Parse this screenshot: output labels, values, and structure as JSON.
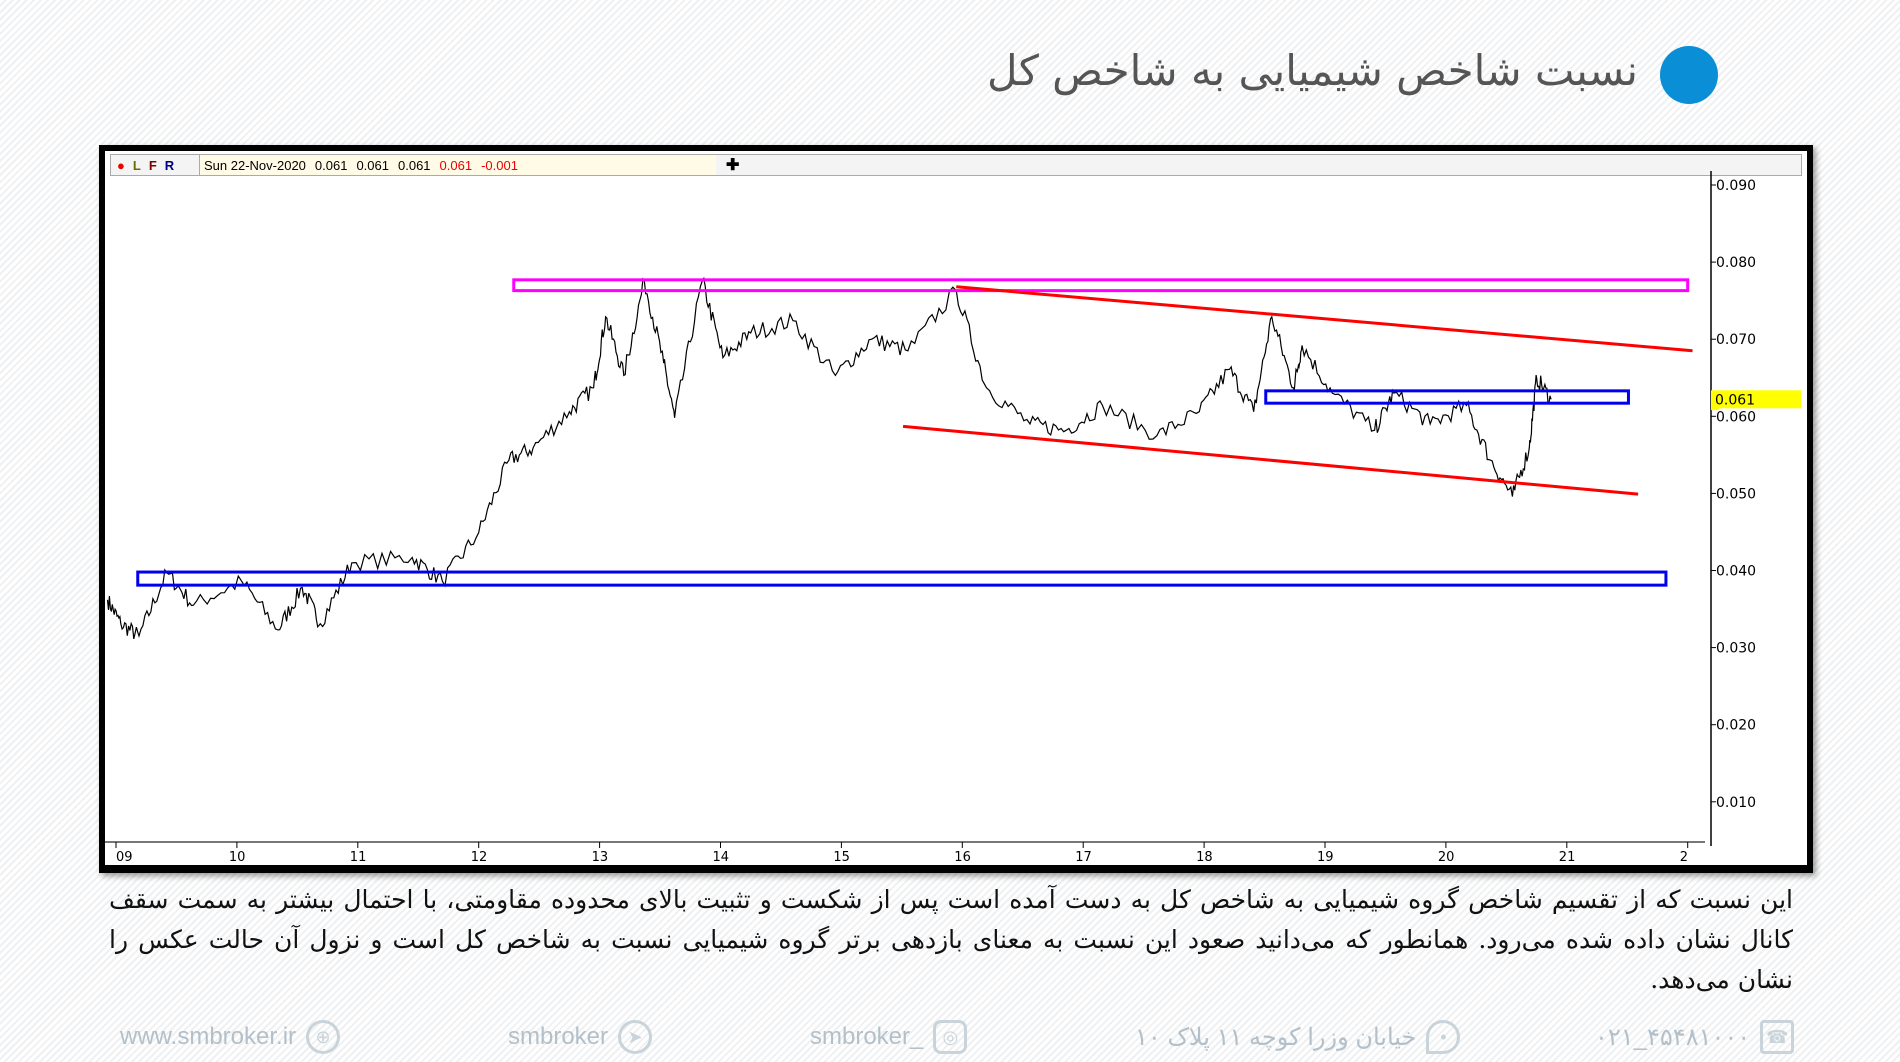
{
  "header": {
    "title": "نسبت شاخص شیمیایی به شاخص کل",
    "bullet_color": "#0a8fd6"
  },
  "infobar": {
    "flags": [
      "L",
      "F",
      "R"
    ],
    "date": "Sun 22-Nov-2020",
    "open": "0.061",
    "high": "0.061",
    "low": "0.061",
    "close": "0.061",
    "change": "-0.001"
  },
  "chart_data": {
    "type": "line",
    "x_tick_labels": [
      "09",
      "10",
      "11",
      "12",
      "13",
      "14",
      "15",
      "16",
      "17",
      "18",
      "19",
      "20",
      "21",
      "2"
    ],
    "xlim": [
      8.93,
      22.1
    ],
    "y_tick_labels": [
      "0.090",
      "0.080",
      "0.070",
      "0.060",
      "0.050",
      "0.040",
      "0.030",
      "0.020",
      "0.010"
    ],
    "ylim": [
      0.005,
      0.091
    ],
    "last_value_label": "0.061",
    "last_value_color": "#ffff00",
    "series": [
      {
        "color": "#000000",
        "points": [
          [
            8.93,
            0.0362
          ],
          [
            9.04,
            0.0331
          ],
          [
            9.19,
            0.0315
          ],
          [
            9.42,
            0.0397
          ],
          [
            9.64,
            0.0355
          ],
          [
            10.04,
            0.0386
          ],
          [
            10.34,
            0.0323
          ],
          [
            10.54,
            0.0378
          ],
          [
            10.69,
            0.0331
          ],
          [
            10.95,
            0.041
          ],
          [
            11.45,
            0.0417
          ],
          [
            11.7,
            0.0386
          ],
          [
            12.0,
            0.0449
          ],
          [
            12.25,
            0.0543
          ],
          [
            12.45,
            0.0559
          ],
          [
            12.75,
            0.0606
          ],
          [
            12.95,
            0.0637
          ],
          [
            13.05,
            0.0729
          ],
          [
            13.2,
            0.0653
          ],
          [
            13.37,
            0.0776
          ],
          [
            13.53,
            0.0669
          ],
          [
            13.62,
            0.0598
          ],
          [
            13.85,
            0.0776
          ],
          [
            14.02,
            0.0676
          ],
          [
            14.25,
            0.0708
          ],
          [
            14.6,
            0.0724
          ],
          [
            14.95,
            0.0653
          ],
          [
            15.25,
            0.07
          ],
          [
            15.55,
            0.0685
          ],
          [
            15.95,
            0.0763
          ],
          [
            16.2,
            0.0637
          ],
          [
            16.56,
            0.059
          ],
          [
            16.86,
            0.0582
          ],
          [
            17.16,
            0.0614
          ],
          [
            17.61,
            0.0575
          ],
          [
            17.96,
            0.0606
          ],
          [
            18.21,
            0.0661
          ],
          [
            18.41,
            0.0606
          ],
          [
            18.56,
            0.0729
          ],
          [
            18.74,
            0.0637
          ],
          [
            18.81,
            0.0692
          ],
          [
            19.06,
            0.063
          ],
          [
            19.41,
            0.0582
          ],
          [
            19.57,
            0.063
          ],
          [
            19.87,
            0.059
          ],
          [
            20.17,
            0.0614
          ],
          [
            20.37,
            0.0543
          ],
          [
            20.55,
            0.0496
          ],
          [
            20.69,
            0.0559
          ],
          [
            20.75,
            0.065
          ],
          [
            20.87,
            0.0622
          ]
        ]
      }
    ],
    "annotations": [
      {
        "kind": "rect",
        "color": "#ff00ff",
        "x": [
          12.29,
          22.0
        ],
        "y": [
          0.0763,
          0.0777
        ]
      },
      {
        "kind": "rect",
        "color": "#0000ee",
        "x": [
          18.51,
          21.51
        ],
        "y": [
          0.0617,
          0.0633
        ]
      },
      {
        "kind": "rect",
        "color": "#0000ee",
        "x": [
          9.18,
          21.82
        ],
        "y": [
          0.0381,
          0.0398
        ]
      },
      {
        "kind": "line",
        "color": "#ff0000",
        "x": [
          15.95,
          22.04
        ],
        "y": [
          0.0768,
          0.0685
        ]
      },
      {
        "kind": "line",
        "color": "#ff0000",
        "x": [
          15.51,
          21.59
        ],
        "y": [
          0.0587,
          0.0499
        ]
      }
    ]
  },
  "description": {
    "line1": "این نسبت که از تقسیم شاخص گروه شیمیایی به شاخص کل به دست آمده است پس از شکست و تثبیت بالای محدوده مقاومتی، با احتمال بیشتر به سمت سقف کانال نشان داده شده می‌رود. همانطور که می‌دانید صعود این نسبت به معنای بازدهی برتر گروه شیمیایی نسبت به شاخص کل  است و نزول آن حالت عکس را نشان می‌دهد."
  },
  "footer": {
    "website": "www.smbroker.ir",
    "telegram": "smbroker",
    "instagram": "smbroker_",
    "address": "خیابان وزرا کوچه ۱۱ پلاک ۱۰",
    "phone": "۰۲۱_۴۵۴۸۱۰۰۰"
  }
}
